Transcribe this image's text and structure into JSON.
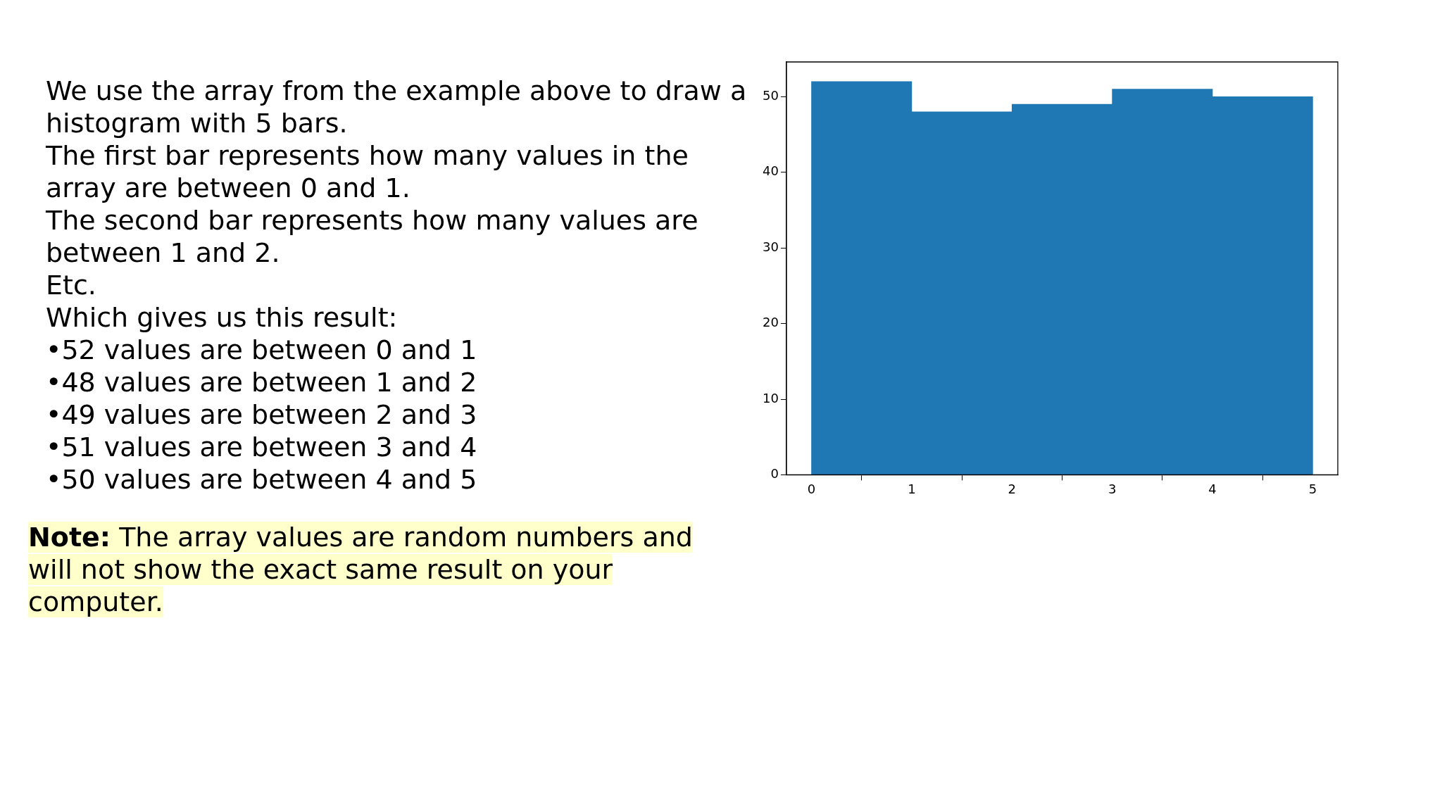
{
  "chart_data": {
    "type": "histogram",
    "bins": [
      0,
      1,
      2,
      3,
      4,
      5
    ],
    "values": [
      52,
      48,
      49,
      51,
      50
    ],
    "color": "#1f77b4",
    "xlim": [
      -0.25,
      5.25
    ],
    "xticks": [
      0,
      1,
      2,
      3,
      4,
      5
    ],
    "ylim": [
      0,
      54.6
    ],
    "yticks": [
      0,
      10,
      20,
      30,
      40,
      50
    ],
    "grid": false,
    "legend": false,
    "annotations": [
      "We use the array from the example above to draw a histogram with 5 bars.",
      "The first bar represents how many values in the array are between 0 and 1.",
      "The second bar represents how many values are between 1 and 2.",
      "Etc.",
      "Which gives us this result:",
      "•52 values are between 0 and 1",
      "•48 values are between 1 and 2",
      "•49 values are between 2 and 3",
      "•51 values are between 3 and 4",
      "•50 values are between 4 and 5",
      "Note: The array values are random numbers and will not show the exact same result on your computer."
    ]
  }
}
